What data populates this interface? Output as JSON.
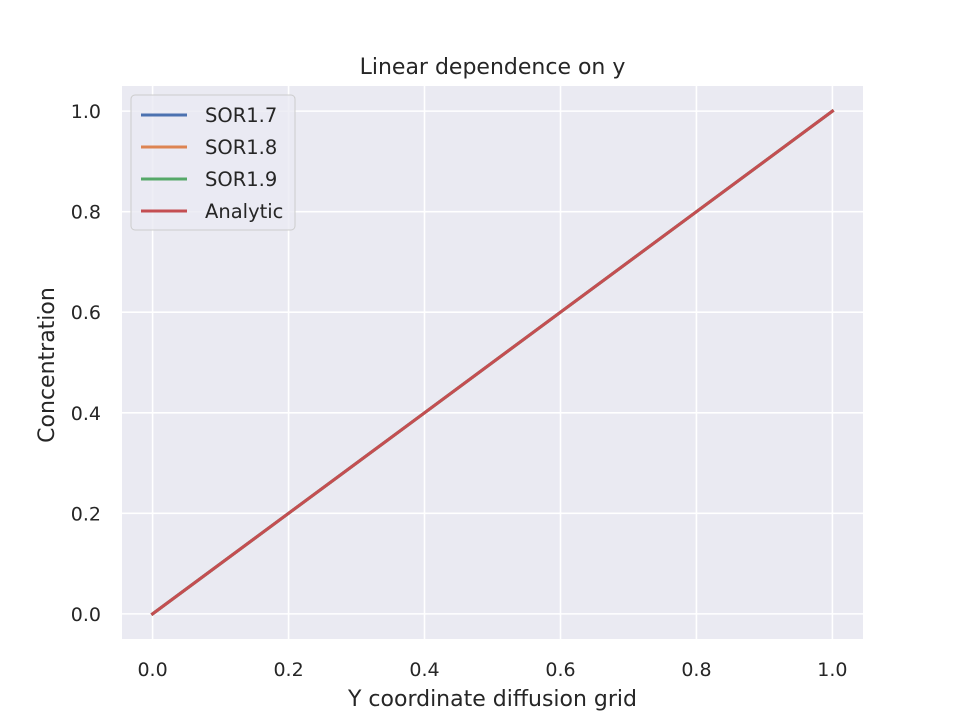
{
  "chart_data": {
    "type": "line",
    "title": "Linear dependence on y",
    "xlabel": "Y coordinate diffusion grid",
    "ylabel": "Concentration",
    "xlim": [
      -0.045,
      1.045
    ],
    "ylim": [
      -0.05,
      1.05
    ],
    "xticks": [
      0.0,
      0.2,
      0.4,
      0.6,
      0.8,
      1.0
    ],
    "yticks": [
      0.0,
      0.2,
      0.4,
      0.6,
      0.8,
      1.0
    ],
    "xtick_labels": [
      "0.0",
      "0.2",
      "0.4",
      "0.6",
      "0.8",
      "1.0"
    ],
    "ytick_labels": [
      "0.0",
      "0.2",
      "0.4",
      "0.6",
      "0.8",
      "1.0"
    ],
    "grid": true,
    "legend_position": "top-left",
    "series": [
      {
        "name": "SOR1.7",
        "color": "#4c72b0",
        "x": [
          0.0,
          0.2,
          0.4,
          0.6,
          0.8,
          1.0
        ],
        "y": [
          0.0,
          0.2,
          0.4,
          0.6,
          0.8,
          1.0
        ]
      },
      {
        "name": "SOR1.8",
        "color": "#dd8452",
        "x": [
          0.0,
          0.2,
          0.4,
          0.6,
          0.8,
          1.0
        ],
        "y": [
          0.0,
          0.2,
          0.4,
          0.6,
          0.8,
          1.0
        ]
      },
      {
        "name": "SOR1.9",
        "color": "#55a868",
        "x": [
          0.0,
          0.2,
          0.4,
          0.6,
          0.8,
          1.0
        ],
        "y": [
          0.0,
          0.2,
          0.4,
          0.6,
          0.8,
          1.0
        ]
      },
      {
        "name": "Analytic",
        "color": "#c44e52",
        "x": [
          0.0,
          0.2,
          0.4,
          0.6,
          0.8,
          1.0
        ],
        "y": [
          0.0,
          0.2,
          0.4,
          0.6,
          0.8,
          1.0
        ]
      }
    ],
    "colors": {
      "plot_background": "#eaeaf2",
      "grid": "#ffffff",
      "text": "#262626"
    }
  }
}
